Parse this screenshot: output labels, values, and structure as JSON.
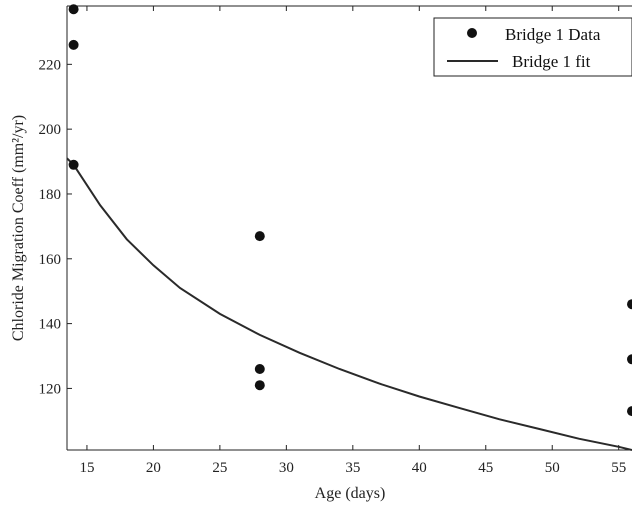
{
  "chart_data": {
    "type": "scatter",
    "xlabel": "Age (days)",
    "ylabel": "Chloride Migration Coeff (mm²/yr)",
    "xlim": [
      13.5,
      56
    ],
    "ylim": [
      101,
      238
    ],
    "x_ticks": [
      15,
      20,
      25,
      30,
      35,
      40,
      45,
      50,
      55
    ],
    "y_ticks": [
      120,
      140,
      160,
      180,
      200,
      220
    ],
    "grid": false,
    "legend_position": "top-right",
    "series": [
      {
        "name": "Bridge 1 Data",
        "kind": "scatter",
        "marker": "filled-circle",
        "x": [
          14,
          14,
          14,
          28,
          28,
          28,
          56,
          56,
          56
        ],
        "y": [
          237,
          226,
          189,
          167,
          126,
          121,
          146,
          129,
          113
        ]
      },
      {
        "name": "Bridge 1 fit",
        "kind": "line",
        "x": [
          13.5,
          14,
          16,
          18,
          20,
          22,
          25,
          28,
          31,
          34,
          37,
          40,
          43,
          46,
          49,
          52,
          55,
          56
        ],
        "y": [
          191,
          189,
          176.5,
          166,
          158,
          151,
          143,
          136.5,
          131,
          126,
          121.5,
          117.5,
          114,
          110.5,
          107.5,
          104.5,
          102,
          101
        ]
      }
    ],
    "colors": {
      "marker": "#111111",
      "line": "#2a2a2a",
      "axis": "#222222"
    }
  }
}
